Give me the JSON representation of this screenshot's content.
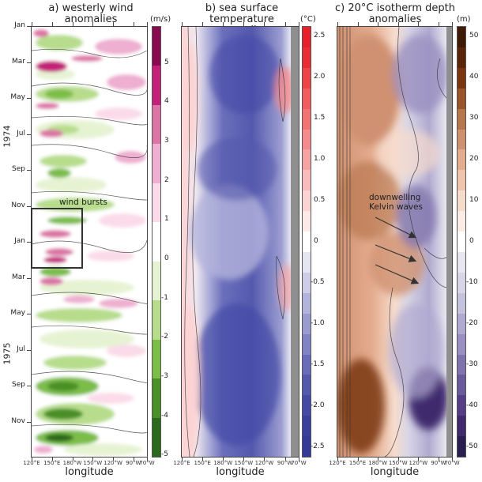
{
  "chart_data": [
    {
      "type": "heatmap",
      "title": "a) westerly wind anomalies",
      "xlabel": "longitude",
      "ylabel": "",
      "x_ticks": [
        "120°E",
        "150°E",
        "180°W",
        "150°W",
        "120°W",
        "90°W",
        "70°W"
      ],
      "y_ticks": [
        "Jan",
        "Mar",
        "May",
        "Jul",
        "Sep",
        "Nov",
        "Jan",
        "Mar",
        "May",
        "Jul",
        "Sep",
        "Nov"
      ],
      "y_groups": [
        "1974",
        "1975"
      ],
      "colorbar": {
        "unit": "(m/s)",
        "ticks": [
          "5",
          "4",
          "3",
          "2",
          "1",
          "0",
          "-1",
          "-2",
          "-3",
          "-4",
          "-5"
        ],
        "range": [
          -5.5,
          5.5
        ],
        "colors": [
          "#8a0a4f",
          "#c4207a",
          "#dc74a6",
          "#eeafd0",
          "#fbdbe9",
          "#ffffff",
          "#e6f3d3",
          "#b7dd8c",
          "#7cbd48",
          "#4a8f28",
          "#2b6a1c"
        ]
      },
      "annotation": "wind bursts"
    },
    {
      "type": "heatmap",
      "title": "b) sea surface temperature anomalies",
      "xlabel": "longitude",
      "x_ticks": [
        "120°E",
        "150°E",
        "180°W",
        "150°W",
        "120°W",
        "90°W",
        "70°W"
      ],
      "colorbar": {
        "unit": "(°C)",
        "ticks": [
          "2.5",
          "2.0",
          "1.5",
          "1.0",
          "0.5",
          "0",
          "-0.5",
          "-1.0",
          "-1.5",
          "-2.0",
          "-2.5"
        ],
        "range": [
          -2.75,
          2.75
        ],
        "colors": [
          "#e8202a",
          "#ea2d33",
          "#ee4347",
          "#f15c5e",
          "#f37375",
          "#f58b8c",
          "#f7a3a4",
          "#fabbbc",
          "#fcd3d3",
          "#fee9e9",
          "#ffffff",
          "#e6e6f3",
          "#cdcde8",
          "#b3b4dc",
          "#9a9cd0",
          "#8184c4",
          "#696db9",
          "#5559ae",
          "#4549a5",
          "#3a3f9d",
          "#343a98"
        ]
      }
    },
    {
      "type": "heatmap",
      "title": "c) 20°C isotherm depth anomalies",
      "xlabel": "longitude",
      "x_ticks": [
        "120°E",
        "150°E",
        "180°W",
        "150°W",
        "120°W",
        "90°W",
        "70°W"
      ],
      "colorbar": {
        "unit": "(m)",
        "ticks": [
          "50",
          "40",
          "30",
          "20",
          "10",
          "0",
          "-10",
          "-20",
          "-30",
          "-40",
          "-50"
        ],
        "range": [
          -55,
          55
        ],
        "colors": [
          "#3f1a05",
          "#5a2508",
          "#7a3510",
          "#9a5428",
          "#b8764f",
          "#cf9171",
          "#e4ac8e",
          "#efc4ad",
          "#f6dccd",
          "#fbece5",
          "#ffffff",
          "#e8e7f0",
          "#d7d5e6",
          "#c5c2dc",
          "#b0aad0",
          "#998fc0",
          "#7f74ab",
          "#6a5a9c",
          "#553d8a",
          "#3f2b6e",
          "#2a1d4f"
        ]
      },
      "annotation": "downwelling Kelvin waves"
    }
  ],
  "panels": {
    "a": {
      "title_line1": "a) westerly wind",
      "title_line2": "anomalies",
      "unit": "(m/s)",
      "annotation": "wind bursts",
      "cbar_labels": [
        "5",
        "4",
        "3",
        "2",
        "1",
        "0",
        "-1",
        "-2",
        "-3",
        "-4",
        "-5"
      ]
    },
    "b": {
      "title_line1": "b) sea surface temperature",
      "title_line2": "anomalies",
      "unit": "(°C)",
      "cbar_labels": [
        "2.5",
        "2.0",
        "1.5",
        "1.0",
        "0.5",
        "0",
        "-0.5",
        "-1.0",
        "-1.5",
        "-2.0",
        "-2.5"
      ]
    },
    "c": {
      "title_line1": "c) 20°C isotherm depth",
      "title_line2": "anomalies",
      "unit": "(m)",
      "annotation_line1": "downwelling",
      "annotation_line2": "Kelvin waves",
      "cbar_labels": [
        "50",
        "40",
        "30",
        "20",
        "10",
        "0",
        "-10",
        "-20",
        "-30",
        "-40",
        "-50"
      ]
    }
  },
  "axes": {
    "xlabel": "longitude",
    "x_ticks": [
      "120°E",
      "150°E",
      "180°W",
      "150°W",
      "120°W",
      "90°W",
      "70°W"
    ],
    "y_ticks": [
      "Jan",
      "Mar",
      "May",
      "Jul",
      "Sep",
      "Nov",
      "Jan",
      "Mar",
      "May",
      "Jul",
      "Sep",
      "Nov"
    ],
    "years": [
      "1974",
      "1975"
    ]
  }
}
